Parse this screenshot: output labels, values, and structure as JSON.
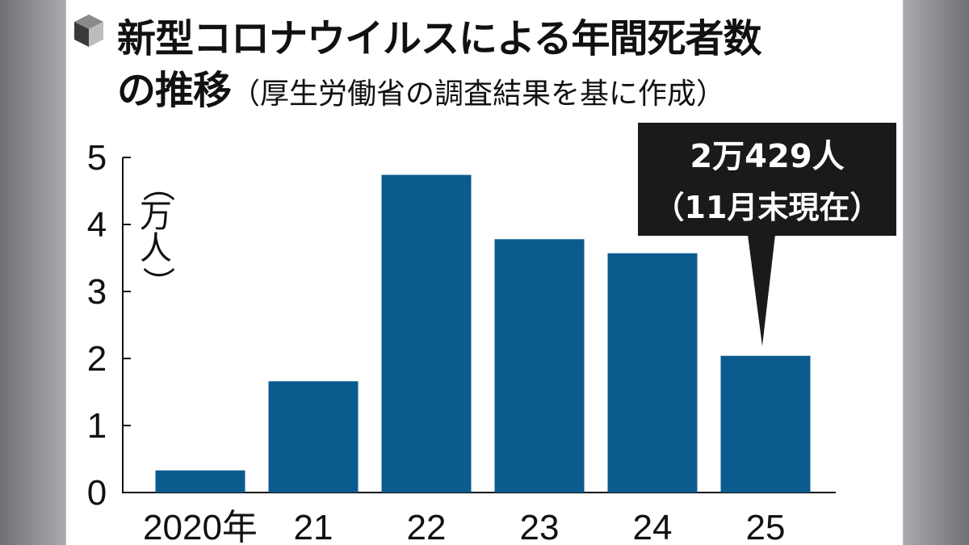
{
  "header": {
    "title_line1": "新型コロナウイルスによる年間死者数",
    "title_line2": "の推移",
    "subtitle": "（厚生労働省の調査結果を基に作成）"
  },
  "chart_data": {
    "type": "bar",
    "categories": [
      "2020年",
      "21",
      "22",
      "23",
      "24",
      "25"
    ],
    "values": [
      0.33,
      1.66,
      4.74,
      3.78,
      3.57,
      2.04
    ],
    "ylim": [
      0,
      5
    ],
    "yticks": [
      "0",
      "1",
      "2",
      "3",
      "4",
      "5"
    ],
    "ylabel": "（万人）",
    "bar_color": "#0b5b8f",
    "grid": false,
    "annotation": {
      "category": "25",
      "line1": "2万429人",
      "line2": "（11月末現在）"
    }
  }
}
